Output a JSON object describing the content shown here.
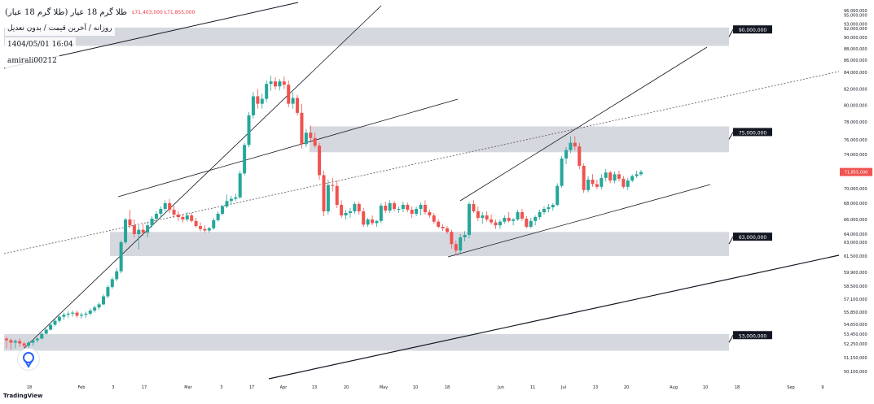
{
  "chart_data": {
    "type": "candlestick",
    "title": "طلا گرم 18 عیار (طلا گرم 18 عیار)",
    "ohlc_text": "Ł71,403,000  Ł71,855,000",
    "subtitle": "روزانه / آخرین قیمت / بدون تعدیل",
    "timestamp": "1404/05/01 16:04",
    "author": "amirali00212",
    "brand": "TradingView",
    "last_price_label": "71,855,000",
    "y_axis": {
      "ticks": [
        "96,000,000",
        "95,000,000",
        "93,000,000",
        "92,000,000",
        "90,000,000",
        "88,000,000",
        "86,000,000",
        "84,000,000",
        "82,000,000",
        "80,000,000",
        "78,000,000",
        "76,000,000",
        "74,000,000",
        "72,000,000",
        "70,000,000",
        "68,000,000",
        "66,000,000",
        "64,000,000",
        "63,000,000",
        "61,500,000",
        "59,900,000",
        "58,500,000",
        "57,100,000",
        "55,850,000",
        "54,650,000",
        "53,450,000",
        "52,250,000",
        "51,150,000",
        "50,100,000"
      ]
    },
    "x_axis": {
      "ticks": [
        "18",
        "Feb",
        "3",
        "17",
        "Mar",
        "3",
        "17",
        "Apr",
        "13",
        "20",
        "May",
        "10",
        "18",
        "Jun",
        "11",
        "Jul",
        "13",
        "20",
        "Aug",
        "10",
        "18",
        "Sep",
        "9"
      ]
    },
    "zones": [
      {
        "label": "90,000,000",
        "bottom": 88500000,
        "top": 92200000
      },
      {
        "label": "75,000,000",
        "bottom": 74300000,
        "top": 77500000
      },
      {
        "label": "63,000,000",
        "bottom": 61500000,
        "top": 64300000
      },
      {
        "label": "53,000,000",
        "bottom": 51700000,
        "top": 53450000
      }
    ],
    "series": [
      {
        "name": "",
        "candles": [
          [
            52.9,
            53.1,
            51.9,
            52.7
          ],
          [
            52.7,
            52.9,
            51.8,
            52.4
          ],
          [
            52.4,
            52.8,
            51.9,
            52.6
          ],
          [
            52.6,
            52.9,
            52.0,
            52.3
          ],
          [
            52.3,
            52.5,
            51.8,
            52.1
          ],
          [
            52.1,
            52.6,
            51.8,
            52.4
          ],
          [
            52.4,
            52.8,
            52.1,
            52.7
          ],
          [
            52.7,
            53.0,
            52.4,
            52.9
          ],
          [
            52.9,
            53.6,
            52.8,
            53.5
          ],
          [
            53.5,
            54.2,
            53.4,
            54.0
          ],
          [
            54.0,
            54.8,
            53.9,
            54.6
          ],
          [
            54.6,
            55.2,
            54.4,
            55.0
          ],
          [
            55.0,
            55.5,
            54.8,
            55.4
          ],
          [
            55.4,
            55.8,
            55.1,
            55.6
          ],
          [
            55.6,
            55.9,
            55.3,
            55.7
          ],
          [
            55.7,
            56.0,
            55.4,
            55.8
          ],
          [
            55.8,
            56.0,
            55.3,
            55.5
          ],
          [
            55.5,
            55.8,
            55.2,
            55.6
          ],
          [
            55.6,
            55.9,
            55.3,
            55.7
          ],
          [
            55.7,
            56.2,
            55.5,
            56.0
          ],
          [
            56.0,
            56.5,
            55.8,
            56.3
          ],
          [
            56.3,
            56.8,
            56.1,
            56.6
          ],
          [
            56.6,
            57.6,
            56.5,
            57.4
          ],
          [
            57.4,
            58.6,
            57.2,
            58.4
          ],
          [
            58.4,
            59.4,
            58.2,
            59.2
          ],
          [
            59.2,
            60.3,
            59.0,
            60.0
          ],
          [
            60.0,
            63.2,
            59.8,
            63.0
          ],
          [
            63.0,
            66.2,
            62.8,
            66.0
          ],
          [
            66.0,
            67.2,
            64.8,
            65.2
          ],
          [
            65.2,
            66.0,
            63.6,
            64.0
          ],
          [
            64.0,
            65.2,
            62.2,
            64.6
          ],
          [
            64.6,
            65.4,
            63.8,
            64.2
          ],
          [
            64.2,
            65.6,
            63.6,
            65.2
          ],
          [
            65.2,
            66.4,
            64.9,
            66.1
          ],
          [
            66.1,
            67.0,
            65.8,
            66.7
          ],
          [
            66.7,
            67.6,
            66.2,
            67.3
          ],
          [
            67.3,
            68.4,
            67.0,
            68.0
          ],
          [
            68.0,
            68.6,
            66.8,
            67.2
          ],
          [
            67.2,
            67.7,
            66.2,
            66.6
          ],
          [
            66.6,
            67.0,
            65.8,
            66.3
          ],
          [
            66.3,
            66.7,
            65.6,
            66.0
          ],
          [
            66.0,
            66.9,
            65.7,
            66.5
          ],
          [
            66.5,
            66.8,
            65.6,
            65.8
          ],
          [
            65.8,
            66.2,
            64.9,
            65.1
          ],
          [
            65.1,
            65.6,
            64.4,
            64.7
          ],
          [
            64.7,
            65.2,
            64.2,
            64.5
          ],
          [
            64.5,
            65.0,
            64.2,
            64.8
          ],
          [
            64.8,
            66.2,
            64.6,
            65.9
          ],
          [
            65.9,
            67.0,
            65.7,
            66.7
          ],
          [
            66.7,
            67.8,
            66.5,
            67.6
          ],
          [
            67.6,
            69.2,
            67.4,
            68.3
          ],
          [
            68.3,
            69.0,
            67.9,
            68.6
          ],
          [
            68.6,
            69.3,
            68.3,
            68.8
          ],
          [
            68.8,
            72.0,
            68.6,
            71.7
          ],
          [
            71.7,
            75.6,
            71.5,
            75.3
          ],
          [
            75.3,
            79.2,
            75.0,
            78.8
          ],
          [
            78.8,
            81.6,
            78.4,
            81.1
          ],
          [
            81.1,
            82.0,
            79.6,
            80.2
          ],
          [
            80.2,
            81.4,
            79.6,
            80.8
          ],
          [
            80.8,
            83.0,
            80.4,
            82.6
          ],
          [
            82.6,
            83.6,
            81.8,
            82.9
          ],
          [
            82.9,
            83.4,
            81.9,
            82.3
          ],
          [
            82.3,
            83.2,
            81.8,
            82.9
          ],
          [
            82.9,
            83.5,
            82.0,
            82.5
          ],
          [
            82.5,
            83.0,
            79.8,
            80.2
          ],
          [
            80.2,
            81.6,
            79.6,
            80.9
          ],
          [
            80.9,
            81.3,
            78.8,
            79.1
          ],
          [
            79.1,
            80.2,
            74.8,
            75.4
          ],
          [
            75.4,
            77.2,
            75.0,
            76.8
          ],
          [
            76.8,
            77.6,
            75.8,
            76.2
          ],
          [
            76.2,
            76.8,
            74.9,
            75.2
          ],
          [
            75.2,
            75.6,
            71.0,
            71.5
          ],
          [
            71.5,
            72.0,
            66.4,
            67.0
          ],
          [
            67.0,
            71.0,
            66.6,
            70.4
          ],
          [
            70.4,
            71.2,
            69.6,
            70.3
          ],
          [
            70.3,
            70.9,
            67.4,
            67.8
          ],
          [
            67.8,
            68.4,
            66.2,
            66.5
          ],
          [
            66.5,
            67.2,
            66.0,
            66.8
          ],
          [
            66.8,
            67.4,
            66.2,
            67.0
          ],
          [
            67.0,
            68.2,
            66.7,
            67.9
          ],
          [
            67.9,
            68.2,
            66.6,
            67.0
          ],
          [
            67.0,
            67.4,
            65.0,
            65.3
          ],
          [
            65.3,
            66.2,
            65.0,
            66.0
          ],
          [
            66.0,
            66.5,
            65.2,
            65.5
          ],
          [
            65.5,
            65.9,
            65.0,
            65.8
          ],
          [
            65.8,
            68.0,
            65.5,
            67.7
          ],
          [
            67.7,
            68.2,
            66.8,
            67.1
          ],
          [
            67.1,
            68.4,
            66.8,
            68.0
          ],
          [
            68.0,
            68.3,
            67.0,
            67.3
          ],
          [
            67.3,
            67.6,
            66.8,
            67.3
          ],
          [
            67.3,
            68.2,
            66.9,
            67.8
          ],
          [
            67.8,
            68.1,
            66.9,
            67.2
          ],
          [
            67.2,
            67.6,
            66.2,
            66.7
          ],
          [
            66.7,
            67.6,
            66.4,
            67.3
          ],
          [
            67.3,
            68.1,
            66.5,
            67.8
          ],
          [
            67.8,
            68.4,
            66.6,
            66.9
          ],
          [
            66.9,
            67.2,
            66.2,
            66.5
          ],
          [
            66.5,
            66.8,
            65.4,
            65.7
          ],
          [
            65.7,
            66.0,
            64.8,
            65.0
          ],
          [
            65.0,
            65.4,
            64.4,
            64.8
          ],
          [
            64.8,
            65.1,
            64.0,
            64.3
          ],
          [
            64.3,
            64.6,
            62.3,
            62.8
          ],
          [
            62.8,
            63.2,
            61.6,
            62.1
          ],
          [
            62.1,
            64.0,
            61.8,
            63.6
          ],
          [
            63.6,
            64.4,
            63.1,
            63.9
          ],
          [
            63.9,
            68.2,
            63.5,
            67.9
          ],
          [
            67.9,
            68.4,
            66.8,
            67.0
          ],
          [
            67.0,
            67.6,
            65.8,
            66.2
          ],
          [
            66.2,
            66.9,
            65.4,
            66.5
          ],
          [
            66.5,
            67.0,
            65.7,
            66.0
          ],
          [
            66.0,
            66.6,
            65.3,
            65.6
          ],
          [
            65.6,
            66.0,
            64.7,
            65.2
          ],
          [
            65.2,
            66.0,
            64.7,
            65.7
          ],
          [
            65.7,
            66.5,
            65.4,
            66.2
          ],
          [
            66.2,
            66.9,
            65.6,
            65.8
          ],
          [
            65.8,
            66.2,
            65.2,
            66.0
          ],
          [
            66.0,
            67.2,
            65.8,
            66.9
          ],
          [
            66.9,
            67.3,
            65.8,
            66.1
          ],
          [
            66.1,
            66.4,
            64.8,
            65.0
          ],
          [
            65.0,
            66.2,
            64.8,
            65.8
          ],
          [
            65.8,
            66.5,
            65.2,
            66.3
          ],
          [
            66.3,
            67.2,
            66.0,
            66.9
          ],
          [
            66.9,
            67.6,
            66.6,
            67.3
          ],
          [
            67.3,
            67.9,
            66.9,
            67.5
          ],
          [
            67.5,
            68.0,
            67.1,
            67.8
          ],
          [
            67.8,
            70.6,
            67.6,
            70.3
          ],
          [
            70.3,
            73.8,
            70.1,
            73.5
          ],
          [
            73.5,
            75.0,
            72.8,
            74.6
          ],
          [
            74.6,
            76.4,
            74.2,
            75.6
          ],
          [
            75.6,
            76.4,
            74.6,
            75.1
          ],
          [
            75.1,
            75.6,
            72.2,
            72.6
          ],
          [
            72.6,
            72.9,
            69.4,
            69.8
          ],
          [
            69.8,
            71.4,
            69.5,
            71.0
          ],
          [
            71.0,
            71.6,
            70.2,
            70.5
          ],
          [
            70.5,
            71.0,
            69.9,
            70.2
          ],
          [
            70.2,
            71.6,
            69.9,
            71.2
          ],
          [
            71.2,
            72.2,
            70.8,
            71.8
          ],
          [
            71.8,
            72.0,
            70.6,
            70.9
          ],
          [
            70.9,
            71.9,
            70.6,
            71.6
          ],
          [
            71.6,
            72.0,
            70.8,
            71.1
          ],
          [
            71.1,
            71.4,
            70.0,
            70.2
          ],
          [
            70.2,
            71.2,
            69.8,
            70.9
          ],
          [
            70.9,
            71.6,
            70.7,
            71.4
          ],
          [
            71.4,
            72.0,
            71.2,
            71.6
          ],
          [
            71.6,
            72.1,
            71.4,
            71.855
          ]
        ]
      }
    ]
  }
}
